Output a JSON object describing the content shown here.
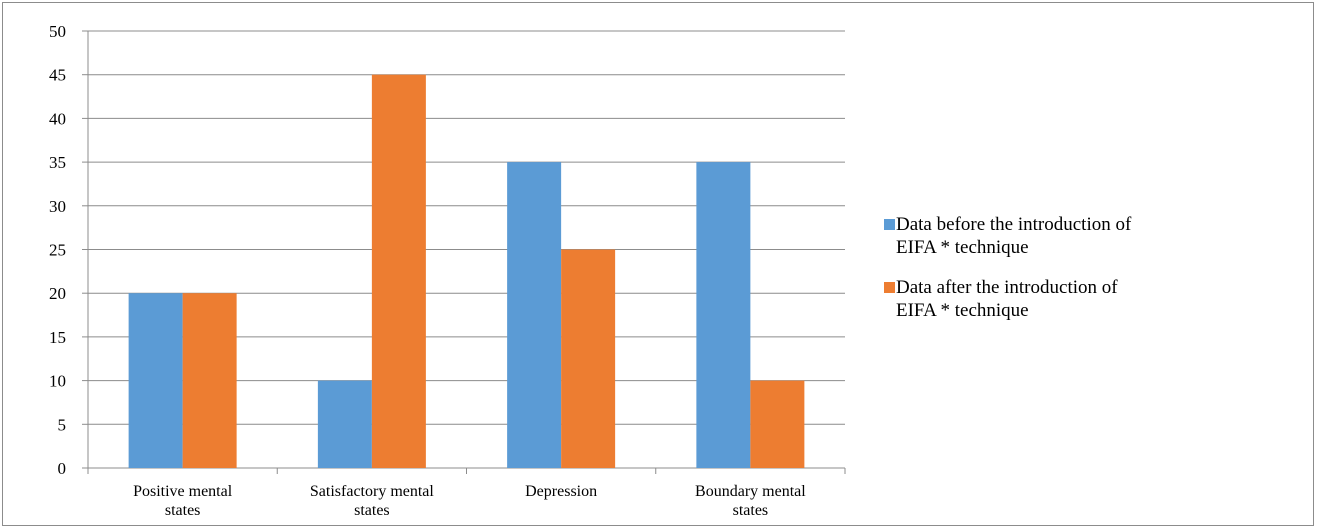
{
  "chart_data": {
    "type": "bar",
    "title": "",
    "xlabel": "",
    "ylabel": "",
    "categories": [
      [
        "Positive mental",
        "states"
      ],
      [
        "Satisfactory mental",
        "states"
      ],
      [
        "Depression"
      ],
      [
        "Boundary mental",
        "states"
      ]
    ],
    "series": [
      {
        "name": [
          "Data before the introduction of",
          "EIFA * technique"
        ],
        "color": "#5b9bd5",
        "values": [
          20,
          10,
          35,
          35
        ]
      },
      {
        "name": [
          "Data after the introduction of",
          "EIFA * technique"
        ],
        "color": "#ed7d31",
        "values": [
          20,
          45,
          25,
          10
        ]
      }
    ],
    "ylim": [
      0,
      50
    ],
    "ytick_step": 5,
    "yticks": [
      "0",
      "5",
      "10",
      "15",
      "20",
      "25",
      "30",
      "35",
      "40",
      "45",
      "50"
    ],
    "grid": true,
    "legend_position": "right"
  }
}
